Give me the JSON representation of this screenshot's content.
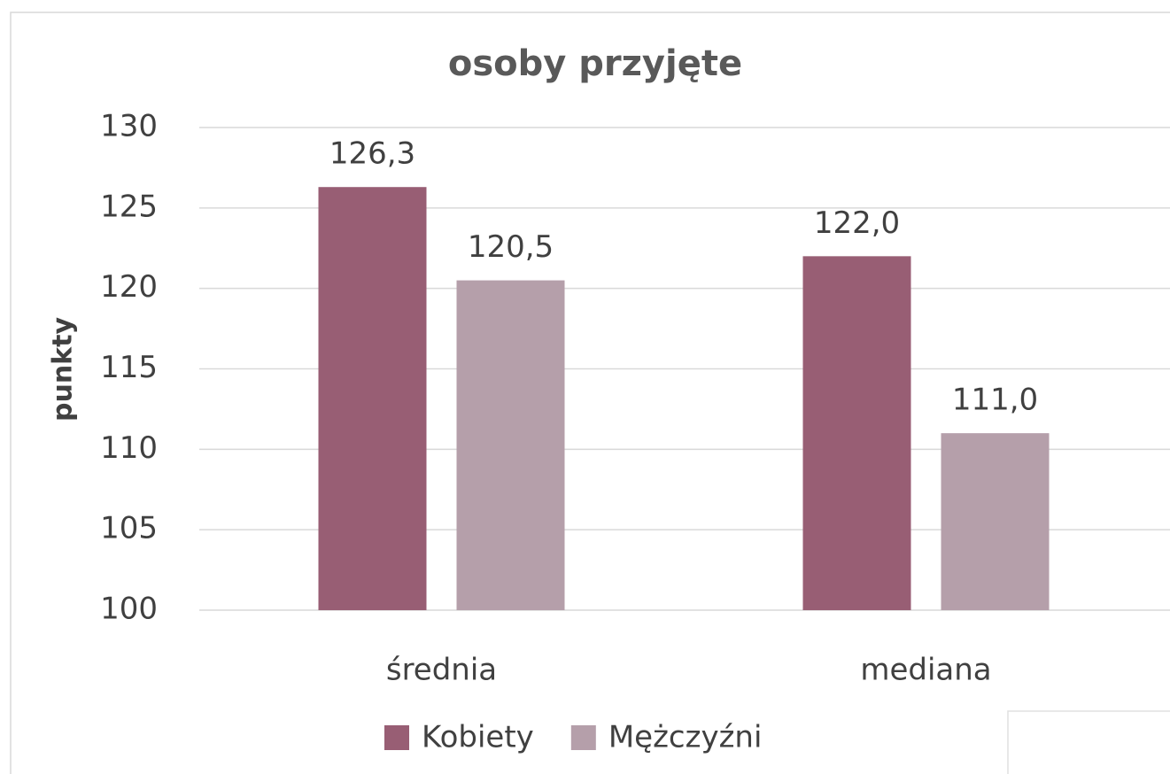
{
  "chart_data": {
    "type": "bar",
    "title": "osoby przyjęte",
    "y_label": "punkty",
    "categories": [
      "średnia",
      "mediana"
    ],
    "series": [
      {
        "name": "Kobiety",
        "color": "#985e74",
        "values": [
          126.3,
          122.0
        ],
        "value_labels": [
          "126,3",
          "122,0"
        ]
      },
      {
        "name": "Mężczyźni",
        "color": "#b59faa",
        "values": [
          120.5,
          111.0
        ],
        "value_labels": [
          "120,5",
          "111,0"
        ]
      }
    ],
    "ylim": [
      100,
      130
    ],
    "yticks": [
      100,
      105,
      110,
      115,
      120,
      125,
      130
    ],
    "grid": true,
    "legend": "bottom"
  }
}
